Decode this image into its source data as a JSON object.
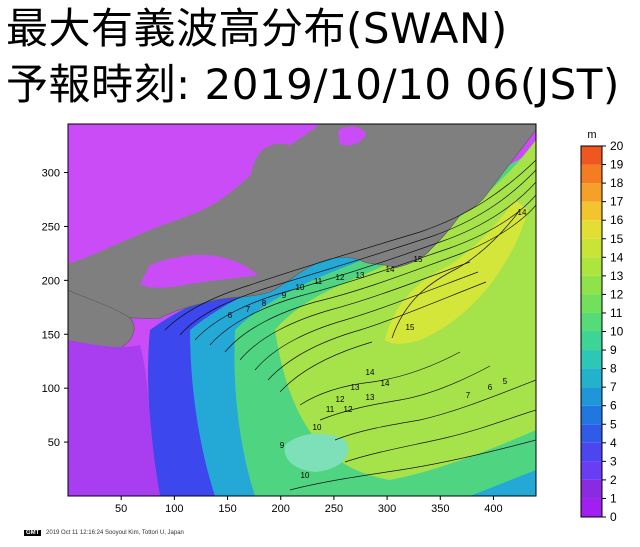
{
  "title_line1": "最大有義波高分布(SWAN)",
  "title_line2": "予報時刻: 2019/10/10 06(JST)",
  "footer": {
    "logo": "GMT",
    "text": "2019 Oct 11 12:16:24   Sooyoul Kim, Tottori U, Japan"
  },
  "map": {
    "x_ticks": [
      "50",
      "100",
      "150",
      "200",
      "250",
      "300",
      "350",
      "400"
    ],
    "y_ticks": [
      "50",
      "100",
      "150",
      "200",
      "250",
      "300"
    ],
    "x_range": [
      0,
      440
    ],
    "y_range": [
      0,
      345
    ],
    "land_color": "#7f7f7f",
    "contour_labels": [
      "6",
      "7",
      "8",
      "9",
      "10",
      "11",
      "12",
      "13",
      "14",
      "15",
      "15",
      "14",
      "13",
      "12",
      "11",
      "10",
      "9",
      "10",
      "12",
      "13",
      "14",
      "7",
      "6",
      "5",
      "14"
    ]
  },
  "colorbar": {
    "unit": "m",
    "levels": [
      "0",
      "1",
      "2",
      "3",
      "4",
      "5",
      "6",
      "7",
      "8",
      "9",
      "10",
      "11",
      "12",
      "13",
      "14",
      "15",
      "16",
      "17",
      "18",
      "19",
      "20"
    ],
    "colors": [
      "#a020f0",
      "#8a2be2",
      "#6a3df5",
      "#4b46f0",
      "#2f5be8",
      "#1f78e0",
      "#1f96d8",
      "#22b2cc",
      "#2cc7b5",
      "#3dd496",
      "#55dc78",
      "#72e05c",
      "#90e24a",
      "#aee43e",
      "#c9e336",
      "#e3de33",
      "#f2c42e",
      "#f5a028",
      "#f57c22",
      "#ee5820"
    ]
  }
}
